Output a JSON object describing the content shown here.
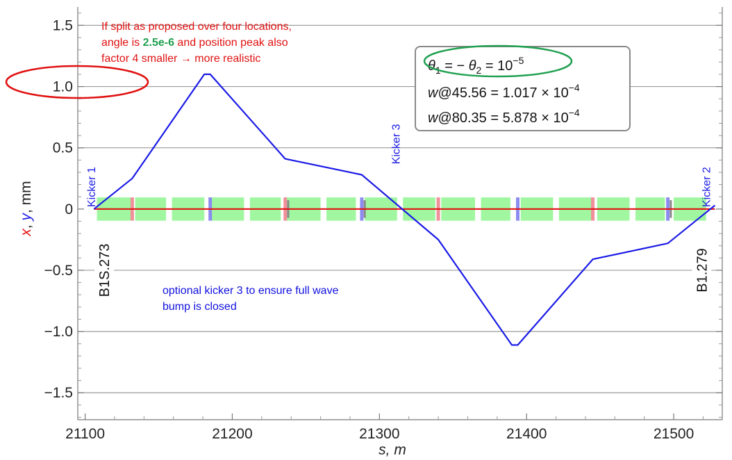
{
  "chart_data": {
    "type": "line",
    "xlabel": "s, m",
    "ylabel": {
      "x": "x",
      "sep1": ", ",
      "y": "y",
      "sep2": ", mm"
    },
    "xlim": [
      21095,
      21533
    ],
    "ylim": [
      -1.72,
      1.65
    ],
    "x_ticks": [
      21100,
      21200,
      21300,
      21400,
      21500
    ],
    "x_tick_labels": [
      "21100",
      "21200",
      "21300",
      "21400",
      "21500"
    ],
    "y_ticks": [
      -1.5,
      -1.0,
      -0.5,
      0,
      0.5,
      1.0,
      1.5
    ],
    "y_tick_labels": [
      "−1.5",
      "−1.0",
      "−0.5",
      "0",
      "0.5",
      "1.0",
      "1.5"
    ],
    "grid_y": [
      -1.5,
      -1.0,
      -0.5,
      0.5,
      1.0,
      1.5
    ],
    "series": [
      {
        "color": "#1a1ae6",
        "x": [
          21106,
          21132,
          21181,
          21185,
          21236,
          21288,
          21340,
          21390,
          21394,
          21445,
          21496,
          21528
        ],
        "y": [
          0.0,
          0.25,
          1.1,
          1.1,
          0.41,
          0.28,
          -0.25,
          -1.11,
          -1.11,
          -0.41,
          -0.28,
          0.03
        ]
      },
      {
        "color": "#e01010",
        "x": [
          21106,
          21528
        ],
        "y": [
          0.0,
          0.0
        ]
      }
    ],
    "lattice_blocks": [
      [
        21108,
        21131
      ],
      [
        21134,
        21155
      ],
      [
        21159,
        21181
      ],
      [
        21185,
        21208
      ],
      [
        21212,
        21233
      ],
      [
        21237,
        21260
      ],
      [
        21264,
        21284
      ],
      [
        21290,
        21312
      ],
      [
        21316,
        21338
      ],
      [
        21342,
        21365
      ],
      [
        21369,
        21389
      ],
      [
        21396,
        21418
      ],
      [
        21422,
        21444
      ],
      [
        21448,
        21470
      ],
      [
        21474,
        21494
      ],
      [
        21500,
        21522
      ]
    ],
    "lattice_y_range": [
      -0.095,
      0.095
    ],
    "lattice_color": "#a0f7a0",
    "markers_red": [
      21132,
      21236,
      21340,
      21445
    ],
    "markers_blue": [
      21185,
      21288,
      21394,
      21496
    ],
    "markers_gray": [
      21238,
      21290,
      21498
    ],
    "kickers": [
      {
        "label": "Kicker 1",
        "x": 21104,
        "y": 0.18
      },
      {
        "label": "Kicker 3",
        "x": 21311,
        "y": 0.53
      },
      {
        "label": "Kicker 2",
        "x": 21522,
        "y": 0.18
      }
    ],
    "elements": [
      {
        "label": "B1S.273",
        "x": 21113,
        "y": -0.5
      },
      {
        "label": "B1.279",
        "x": 21519,
        "y": -0.5
      }
    ],
    "note_red": {
      "line1": "If split as proposed over four locations,",
      "line2_a": "angle is ",
      "line2_b": "2.5e-6",
      "line2_c": " and position peak also",
      "line3": "factor 4 smaller → more realistic"
    },
    "note_blue": {
      "line1": "optional kicker 3 to ensure full wave",
      "line2": "bump is closed"
    },
    "info_box": {
      "theta": "θ",
      "sub1": "1",
      "eq_mid": " = − ",
      "sub2": "2",
      "eq_end": " = 10",
      "exp": "−5",
      "w1_sym": "w",
      "w1_text": "@45.56 = 1.017 × 10",
      "w1_exp": "−4",
      "w2_sym": "w",
      "w2_text": "@80.35 = 5.878 × 10",
      "w2_exp": "−4"
    },
    "highlight_colors": {
      "green_ellipse": "#20a050",
      "red_ellipse": "#e01010",
      "green_text": "#20a050"
    }
  }
}
